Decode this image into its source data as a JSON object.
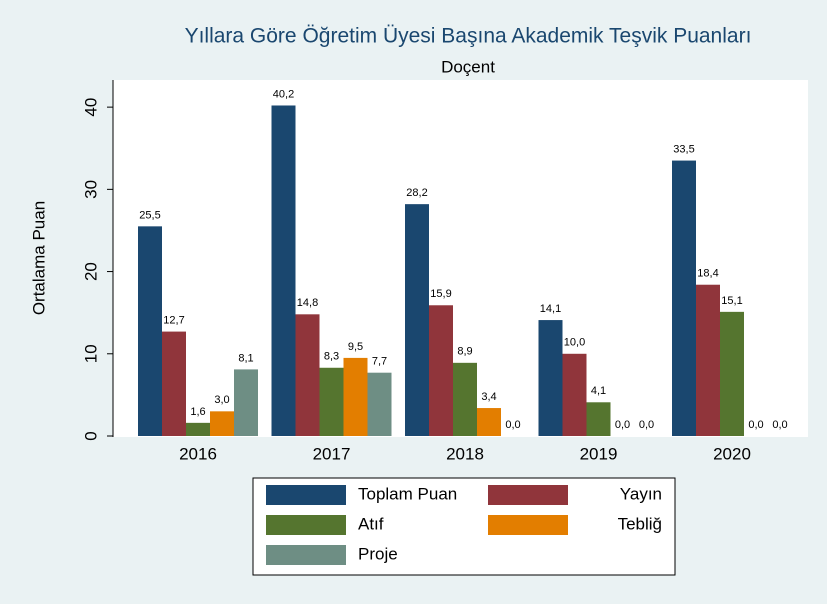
{
  "chart_data": {
    "type": "bar",
    "title": "Yıllara Göre Öğretim Üyesi Başına Akademik Teşvik Puanları",
    "subtitle": "Doçent",
    "y_label": "Ortalama Puan",
    "categories": [
      "2016",
      "2017",
      "2018",
      "2019",
      "2020"
    ],
    "series": [
      {
        "name": "Toplam Puan",
        "color": "#1a476f",
        "values": [
          25.5,
          40.2,
          28.2,
          14.1,
          33.5
        ],
        "value_labels": [
          "25,5",
          "40,2",
          "28,2",
          "14,1",
          "33,5"
        ]
      },
      {
        "name": "Yayın",
        "color": "#90353b",
        "values": [
          12.7,
          14.8,
          15.9,
          10.0,
          18.4
        ],
        "value_labels": [
          "12,7",
          "14,8",
          "15,9",
          "10,0",
          "18,4"
        ]
      },
      {
        "name": "Atıf",
        "color": "#55752f",
        "values": [
          1.6,
          8.3,
          8.9,
          4.1,
          15.1
        ],
        "value_labels": [
          "1,6",
          "8,3",
          "8,9",
          "4,1",
          "15,1"
        ]
      },
      {
        "name": "Tebliğ",
        "color": "#e37e00",
        "values": [
          3.0,
          9.5,
          3.4,
          0.0,
          0.0
        ],
        "value_labels": [
          "3,0",
          "9,5",
          "3,4",
          "0,0",
          "0,0"
        ]
      },
      {
        "name": "Proje",
        "color": "#6e8e84",
        "values": [
          8.1,
          7.7,
          0.0,
          0.0,
          0.0
        ],
        "value_labels": [
          "8,1",
          "7,7",
          "0,0",
          "0,0",
          "0,0"
        ]
      }
    ],
    "ylim": [
      0,
      43.3
    ],
    "yticks": [
      0,
      10,
      20,
      30,
      40
    ],
    "grid": false
  }
}
